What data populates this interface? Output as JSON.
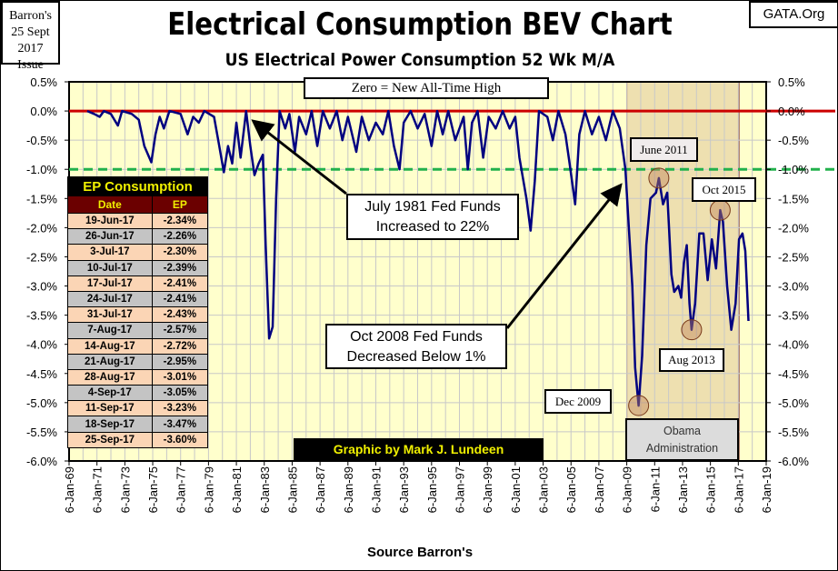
{
  "header": {
    "source_note": [
      "Barron's",
      "25 Sept 2017",
      "Issue"
    ],
    "site": "GATA.Org",
    "footer": "Source Barron's",
    "credit": "Graphic by Mark J. Lundeen"
  },
  "table": {
    "title": "EP Consumption",
    "columns": [
      "Date",
      "EP"
    ],
    "rows": [
      [
        "19-Jun-17",
        "-2.34%"
      ],
      [
        "26-Jun-17",
        "-2.26%"
      ],
      [
        "3-Jul-17",
        "-2.30%"
      ],
      [
        "10-Jul-17",
        "-2.39%"
      ],
      [
        "17-Jul-17",
        "-2.41%"
      ],
      [
        "24-Jul-17",
        "-2.41%"
      ],
      [
        "31-Jul-17",
        "-2.43%"
      ],
      [
        "7-Aug-17",
        "-2.57%"
      ],
      [
        "14-Aug-17",
        "-2.72%"
      ],
      [
        "21-Aug-17",
        "-2.95%"
      ],
      [
        "28-Aug-17",
        "-3.01%"
      ],
      [
        "4-Sep-17",
        "-3.05%"
      ],
      [
        "11-Sep-17",
        "-3.23%"
      ],
      [
        "18-Sep-17",
        "-3.47%"
      ],
      [
        "25-Sep-17",
        "-3.60%"
      ]
    ]
  },
  "chart_data": {
    "type": "line",
    "title": "Electrical Consumption  BEV Chart",
    "subtitle": "US Electrical Power Consumption 52 Wk M/A",
    "xlabel": "Source Barron's",
    "ylabel": "",
    "xlim": [
      1969,
      2019
    ],
    "ylim": [
      -6.0,
      0.5
    ],
    "grid": true,
    "x_tick_labels": [
      "6-Jan-69",
      "6-Jan-71",
      "6-Jan-73",
      "6-Jan-75",
      "6-Jan-77",
      "6-Jan-79",
      "6-Jan-81",
      "6-Jan-83",
      "6-Jan-85",
      "6-Jan-87",
      "6-Jan-89",
      "6-Jan-91",
      "6-Jan-93",
      "6-Jan-95",
      "6-Jan-97",
      "6-Jan-99",
      "6-Jan-01",
      "6-Jan-03",
      "6-Jan-05",
      "6-Jan-07",
      "6-Jan-09",
      "6-Jan-11",
      "6-Jan-13",
      "6-Jan-15",
      "6-Jan-17",
      "6-Jan-19"
    ],
    "y_ticks": [
      0.5,
      0.0,
      -0.5,
      -1.0,
      -1.5,
      -2.0,
      -2.5,
      -3.0,
      -3.5,
      -4.0,
      -4.5,
      -5.0,
      -5.5,
      -6.0
    ],
    "y_tick_labels": [
      "0.5%",
      "0.0%",
      "-0.5%",
      "-1.0%",
      "-1.5%",
      "-2.0%",
      "-2.5%",
      "-3.0%",
      "-3.5%",
      "-4.0%",
      "-4.5%",
      "-5.0%",
      "-5.5%",
      "-6.0%"
    ],
    "reference_lines": [
      {
        "name": "All-Time High",
        "value": 0.0,
        "color": "#cc0000",
        "style": "solid"
      },
      {
        "name": "-1% level",
        "value": -1.0,
        "color": "#22b14c",
        "style": "dashed"
      }
    ],
    "shaded_region": {
      "label": "Obama Administration",
      "from": 2009.0,
      "to": 2017.05
    },
    "series": [
      {
        "name": "EP Consumption 52 Wk M/A",
        "color": "#000080",
        "points": [
          [
            1970.3,
            0
          ],
          [
            1970.8,
            -0.05
          ],
          [
            1971.2,
            -0.1
          ],
          [
            1971.5,
            0
          ],
          [
            1972.0,
            -0.05
          ],
          [
            1972.5,
            -0.25
          ],
          [
            1972.8,
            0
          ],
          [
            1973.5,
            -0.05
          ],
          [
            1974.0,
            -0.15
          ],
          [
            1974.4,
            -0.6
          ],
          [
            1974.9,
            -0.88
          ],
          [
            1975.2,
            -0.4
          ],
          [
            1975.5,
            -0.1
          ],
          [
            1975.8,
            -0.3
          ],
          [
            1976.2,
            0
          ],
          [
            1977.0,
            -0.05
          ],
          [
            1977.5,
            -0.4
          ],
          [
            1977.9,
            -0.1
          ],
          [
            1978.3,
            -0.2
          ],
          [
            1978.7,
            0
          ],
          [
            1979.4,
            -0.1
          ],
          [
            1979.7,
            -0.5
          ],
          [
            1980.1,
            -1.05
          ],
          [
            1980.4,
            -0.6
          ],
          [
            1980.7,
            -0.9
          ],
          [
            1981.0,
            -0.2
          ],
          [
            1981.3,
            -0.8
          ],
          [
            1981.7,
            0
          ],
          [
            1982.0,
            -0.6
          ],
          [
            1982.3,
            -1.1
          ],
          [
            1982.6,
            -0.9
          ],
          [
            1982.9,
            -0.75
          ],
          [
            1983.1,
            -2.3
          ],
          [
            1983.35,
            -3.9
          ],
          [
            1983.6,
            -3.7
          ],
          [
            1983.85,
            -1.5
          ],
          [
            1984.1,
            0
          ],
          [
            1984.5,
            -0.3
          ],
          [
            1984.8,
            -0.05
          ],
          [
            1985.2,
            -0.7
          ],
          [
            1985.5,
            -0.1
          ],
          [
            1986.0,
            -0.4
          ],
          [
            1986.4,
            0
          ],
          [
            1986.8,
            -0.6
          ],
          [
            1987.2,
            0
          ],
          [
            1987.7,
            -0.3
          ],
          [
            1988.2,
            0
          ],
          [
            1988.6,
            -0.5
          ],
          [
            1989.0,
            -0.1
          ],
          [
            1989.6,
            -0.7
          ],
          [
            1990.0,
            -0.1
          ],
          [
            1990.5,
            -0.5
          ],
          [
            1991.0,
            -0.2
          ],
          [
            1991.5,
            -0.4
          ],
          [
            1991.9,
            0
          ],
          [
            1992.3,
            -0.6
          ],
          [
            1992.7,
            -1.0
          ],
          [
            1993.0,
            -0.2
          ],
          [
            1993.5,
            0
          ],
          [
            1994.0,
            -0.3
          ],
          [
            1994.5,
            -0.05
          ],
          [
            1995.0,
            -0.6
          ],
          [
            1995.4,
            0
          ],
          [
            1995.8,
            -0.4
          ],
          [
            1996.2,
            0
          ],
          [
            1996.7,
            -0.5
          ],
          [
            1997.3,
            -0.1
          ],
          [
            1997.6,
            -1.0
          ],
          [
            1997.9,
            -0.2
          ],
          [
            1998.3,
            0
          ],
          [
            1998.7,
            -0.8
          ],
          [
            1999.1,
            -0.1
          ],
          [
            1999.6,
            -0.3
          ],
          [
            2000.1,
            0
          ],
          [
            2000.6,
            -0.3
          ],
          [
            2001.0,
            -0.1
          ],
          [
            2001.3,
            -0.8
          ],
          [
            2001.8,
            -1.5
          ],
          [
            2002.1,
            -2.05
          ],
          [
            2002.4,
            -1.2
          ],
          [
            2002.7,
            0
          ],
          [
            2003.3,
            -0.1
          ],
          [
            2003.7,
            -0.5
          ],
          [
            2004.1,
            0
          ],
          [
            2004.6,
            -0.4
          ],
          [
            2004.9,
            -0.9
          ],
          [
            2005.3,
            -1.6
          ],
          [
            2005.6,
            -0.4
          ],
          [
            2006.0,
            0
          ],
          [
            2006.5,
            -0.4
          ],
          [
            2007.0,
            -0.1
          ],
          [
            2007.5,
            -0.5
          ],
          [
            2008.0,
            0
          ],
          [
            2008.5,
            -0.3
          ],
          [
            2008.9,
            -1.0
          ],
          [
            2009.1,
            -1.8
          ],
          [
            2009.4,
            -3.0
          ],
          [
            2009.6,
            -4.4
          ],
          [
            2009.85,
            -5.05
          ],
          [
            2010.1,
            -4.2
          ],
          [
            2010.4,
            -2.3
          ],
          [
            2010.7,
            -1.5
          ],
          [
            2011.1,
            -1.4
          ],
          [
            2011.3,
            -1.15
          ],
          [
            2011.6,
            -1.6
          ],
          [
            2011.9,
            -1.4
          ],
          [
            2012.2,
            -2.8
          ],
          [
            2012.4,
            -3.1
          ],
          [
            2012.7,
            -3.0
          ],
          [
            2012.9,
            -3.2
          ],
          [
            2013.1,
            -2.6
          ],
          [
            2013.3,
            -2.3
          ],
          [
            2013.5,
            -3.3
          ],
          [
            2013.65,
            -3.75
          ],
          [
            2013.9,
            -3.3
          ],
          [
            2014.2,
            -2.1
          ],
          [
            2014.5,
            -2.1
          ],
          [
            2014.8,
            -2.9
          ],
          [
            2015.1,
            -2.2
          ],
          [
            2015.4,
            -2.7
          ],
          [
            2015.7,
            -1.7
          ],
          [
            2015.9,
            -1.9
          ],
          [
            2016.2,
            -3.0
          ],
          [
            2016.5,
            -3.75
          ],
          [
            2016.8,
            -3.3
          ],
          [
            2017.05,
            -2.2
          ],
          [
            2017.3,
            -2.1
          ],
          [
            2017.5,
            -2.4
          ],
          [
            2017.73,
            -3.6
          ]
        ]
      }
    ],
    "annotations": [
      {
        "text": "Zero = New All-Time High"
      },
      {
        "text": [
          "July 1981 Fed Funds",
          "Increased to 22%"
        ]
      },
      {
        "text": [
          "Oct 2008 Fed Funds",
          "Decreased Below 1%"
        ]
      },
      {
        "text": "June 2011",
        "x": 2011.3,
        "y": -1.15
      },
      {
        "text": "Oct 2015",
        "x": 2015.7,
        "y": -1.7
      },
      {
        "text": "Aug 2013",
        "x": 2013.65,
        "y": -3.75
      },
      {
        "text": "Dec 2009",
        "x": 2009.85,
        "y": -5.05
      },
      {
        "text": [
          "Obama",
          "Administration"
        ]
      }
    ]
  }
}
